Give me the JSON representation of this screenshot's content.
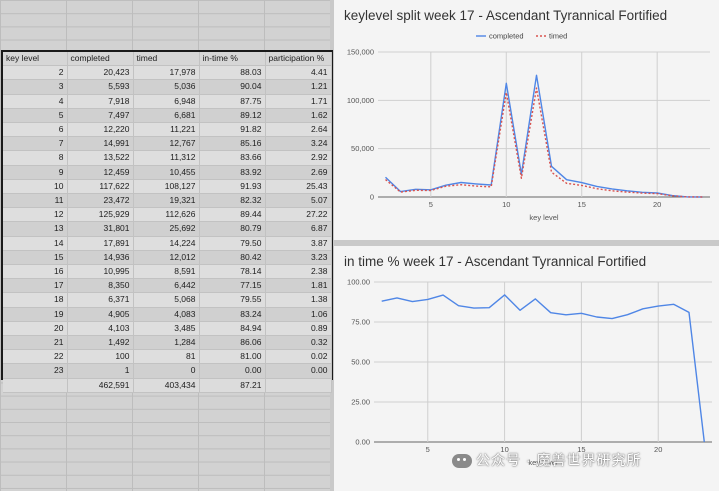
{
  "table": {
    "headers": [
      "key level",
      "completed",
      "timed",
      "in-time %",
      "participation %"
    ],
    "rows": [
      [
        "2",
        "20,423",
        "17,978",
        "88.03",
        "4.41"
      ],
      [
        "3",
        "5,593",
        "5,036",
        "90.04",
        "1.21"
      ],
      [
        "4",
        "7,918",
        "6,948",
        "87.75",
        "1.71"
      ],
      [
        "5",
        "7,497",
        "6,681",
        "89.12",
        "1.62"
      ],
      [
        "6",
        "12,220",
        "11,221",
        "91.82",
        "2.64"
      ],
      [
        "7",
        "14,991",
        "12,767",
        "85.16",
        "3.24"
      ],
      [
        "8",
        "13,522",
        "11,312",
        "83.66",
        "2.92"
      ],
      [
        "9",
        "12,459",
        "10,455",
        "83.92",
        "2.69"
      ],
      [
        "10",
        "117,622",
        "108,127",
        "91.93",
        "25.43"
      ],
      [
        "11",
        "23,472",
        "19,321",
        "82.32",
        "5.07"
      ],
      [
        "12",
        "125,929",
        "112,626",
        "89.44",
        "27.22"
      ],
      [
        "13",
        "31,801",
        "25,692",
        "80.79",
        "6.87"
      ],
      [
        "14",
        "17,891",
        "14,224",
        "79.50",
        "3.87"
      ],
      [
        "15",
        "14,936",
        "12,012",
        "80.42",
        "3.23"
      ],
      [
        "16",
        "10,995",
        "8,591",
        "78.14",
        "2.38"
      ],
      [
        "17",
        "8,350",
        "6,442",
        "77.15",
        "1.81"
      ],
      [
        "18",
        "6,371",
        "5,068",
        "79.55",
        "1.38"
      ],
      [
        "19",
        "4,905",
        "4,083",
        "83.24",
        "1.06"
      ],
      [
        "20",
        "4,103",
        "3,485",
        "84.94",
        "0.89"
      ],
      [
        "21",
        "1,492",
        "1,284",
        "86.06",
        "0.32"
      ],
      [
        "22",
        "100",
        "81",
        "81.00",
        "0.02"
      ],
      [
        "23",
        "1",
        "0",
        "0.00",
        "0.00"
      ]
    ],
    "totals": [
      "",
      "462,591",
      "403,434",
      "87.21",
      ""
    ]
  },
  "chart_data": [
    {
      "type": "line",
      "title": "keylevel split week 17 - Ascendant Tyrannical Fortified",
      "xlabel": "key level",
      "ylabel": "",
      "x": [
        2,
        3,
        4,
        5,
        6,
        7,
        8,
        9,
        10,
        11,
        12,
        13,
        14,
        15,
        16,
        17,
        18,
        19,
        20,
        21,
        22,
        23
      ],
      "xlim": [
        1.5,
        23.5
      ],
      "xticks": [
        5,
        10,
        15,
        20
      ],
      "ylim": [
        0,
        150000
      ],
      "yticks": [
        0,
        50000,
        100000,
        150000
      ],
      "ytick_labels": [
        "0",
        "50,000",
        "100,000",
        "150,000"
      ],
      "legend_position": "top",
      "series": [
        {
          "name": "completed",
          "color": "#4f86e6",
          "dashed": false,
          "values": [
            20423,
            5593,
            7918,
            7497,
            12220,
            14991,
            13522,
            12459,
            117622,
            23472,
            125929,
            31801,
            17891,
            14936,
            10995,
            8350,
            6371,
            4905,
            4103,
            1492,
            100,
            1
          ]
        },
        {
          "name": "timed",
          "color": "#d9534f",
          "dashed": true,
          "values": [
            17978,
            5036,
            6948,
            6681,
            11221,
            12767,
            11312,
            10455,
            108127,
            19321,
            112626,
            25692,
            14224,
            12012,
            8591,
            6442,
            5068,
            4083,
            3485,
            1284,
            81,
            0
          ]
        }
      ]
    },
    {
      "type": "line",
      "title": "in time % week 17 - Ascendant Tyrannical Fortified",
      "xlabel": "key level",
      "ylabel": "",
      "x": [
        2,
        3,
        4,
        5,
        6,
        7,
        8,
        9,
        10,
        11,
        12,
        13,
        14,
        15,
        16,
        17,
        18,
        19,
        20,
        21,
        22,
        23
      ],
      "xlim": [
        1.5,
        23.5
      ],
      "xticks": [
        5,
        10,
        15,
        20
      ],
      "ylim": [
        0,
        100
      ],
      "yticks": [
        0,
        25,
        50,
        75,
        100
      ],
      "ytick_labels": [
        "0.00",
        "25.00",
        "50.00",
        "75.00",
        "100.00"
      ],
      "series": [
        {
          "name": "",
          "color": "#4f86e6",
          "dashed": false,
          "values": [
            88.03,
            90.04,
            87.75,
            89.12,
            91.82,
            85.16,
            83.66,
            83.92,
            91.93,
            82.32,
            89.44,
            80.79,
            79.5,
            80.42,
            78.14,
            77.15,
            79.55,
            83.24,
            84.94,
            86.06,
            81.0,
            0.0
          ]
        }
      ]
    }
  ],
  "watermark": "公众号 · 魔兽世界研究所"
}
